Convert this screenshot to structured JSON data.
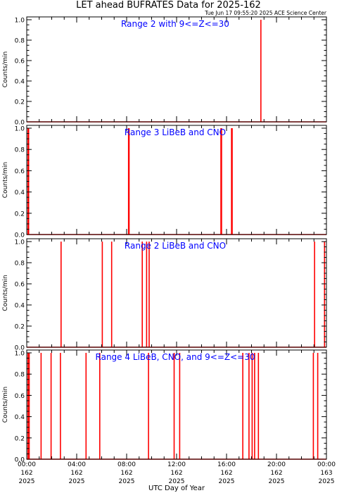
{
  "title": "LET ahead BUFRATES Data for 2025-162",
  "timestamp": "Tue Jun 17 09:55:20 2025 ACE Science Center",
  "xlabel": "UTC Day of Year",
  "colors": {
    "trace": "#ff0000",
    "label": "#0000ff",
    "axes": "#000000"
  },
  "chart_data": [
    {
      "type": "line",
      "title": "Range 2 with 9<=Z<=30",
      "ylabel": "Counts/min",
      "ylim": [
        0,
        1.0
      ],
      "xlim": [
        0,
        24
      ],
      "spikes": [
        18.75
      ]
    },
    {
      "type": "line",
      "title": "Range 3 LiBeB and CNO",
      "ylabel": "Counts/min",
      "ylim": [
        0,
        1.0
      ],
      "xlim": [
        0,
        24
      ],
      "spikes": [
        0.1,
        0.15,
        8.15,
        8.2,
        15.55,
        15.6,
        16.4,
        16.45
      ]
    },
    {
      "type": "line",
      "title": "Range 2 LiBeB and CNO",
      "ylabel": "Counts/min",
      "ylim": [
        0,
        1.0
      ],
      "xlim": [
        0,
        24
      ],
      "spikes": [
        2.75,
        6.05,
        6.8,
        9.25,
        9.6,
        9.8,
        23.05,
        23.85
      ]
    },
    {
      "type": "line",
      "title": "Range 4 LiBeB, CNO, and 9<=Z<=30",
      "ylabel": "Counts/min",
      "ylim": [
        0,
        1.0
      ],
      "xlim": [
        0,
        24
      ],
      "spikes": [
        0.1,
        0.2,
        1.15,
        1.95,
        2.7,
        4.75,
        5.85,
        9.75,
        11.8,
        12.25,
        17.3,
        17.8,
        18.05,
        18.25,
        18.55,
        22.95,
        23.3
      ]
    }
  ],
  "x_ticks": [
    {
      "hhmm": "00:00",
      "doy": "162",
      "year": "2025"
    },
    {
      "hhmm": "04:00",
      "doy": "162",
      "year": "2025"
    },
    {
      "hhmm": "08:00",
      "doy": "162",
      "year": "2025"
    },
    {
      "hhmm": "12:00",
      "doy": "162",
      "year": "2025"
    },
    {
      "hhmm": "16:00",
      "doy": "162",
      "year": "2025"
    },
    {
      "hhmm": "20:00",
      "doy": "162",
      "year": "2025"
    },
    {
      "hhmm": "00:00",
      "doy": "163",
      "year": "2025"
    }
  ],
  "y_ticks": [
    "0.0",
    "0.2",
    "0.4",
    "0.6",
    "0.8",
    "1.0"
  ]
}
